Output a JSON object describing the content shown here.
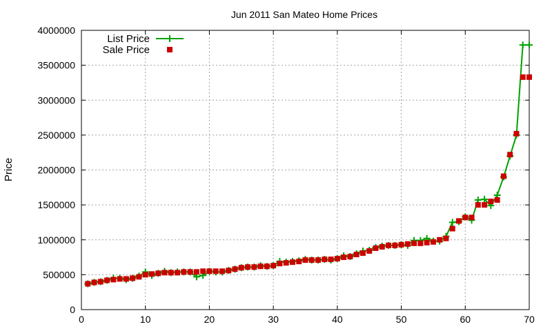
{
  "chart_data": {
    "type": "line",
    "title": "Jun 2011 San Mateo Home Prices",
    "xlabel": "",
    "ylabel": "Price",
    "xlim": [
      0,
      70
    ],
    "ylim": [
      0,
      4000000
    ],
    "x_ticks": [
      0,
      10,
      20,
      30,
      40,
      50,
      60,
      70
    ],
    "y_ticks": [
      0,
      500000,
      1000000,
      1500000,
      2000000,
      2500000,
      3000000,
      3500000,
      4000000
    ],
    "grid": true,
    "legend_position": "top-left",
    "series": [
      {
        "name": "List Price",
        "style": "line-with-plus-markers",
        "color": "#00a000",
        "x": [
          1,
          2,
          3,
          4,
          5,
          6,
          7,
          8,
          9,
          10,
          11,
          12,
          13,
          14,
          15,
          16,
          17,
          18,
          19,
          20,
          21,
          22,
          23,
          24,
          25,
          26,
          27,
          28,
          29,
          30,
          31,
          32,
          33,
          34,
          35,
          36,
          37,
          38,
          39,
          40,
          41,
          42,
          43,
          44,
          45,
          46,
          47,
          48,
          49,
          50,
          51,
          52,
          53,
          54,
          55,
          56,
          57,
          58,
          59,
          60,
          61,
          62,
          63,
          64,
          65,
          66,
          67,
          68,
          69,
          70
        ],
        "values": [
          370000,
          390000,
          400000,
          420000,
          450000,
          450000,
          430000,
          450000,
          480000,
          540000,
          490000,
          520000,
          550000,
          530000,
          540000,
          540000,
          540000,
          470000,
          490000,
          550000,
          540000,
          540000,
          560000,
          580000,
          600000,
          610000,
          610000,
          630000,
          620000,
          630000,
          690000,
          680000,
          690000,
          700000,
          720000,
          710000,
          710000,
          720000,
          710000,
          730000,
          770000,
          760000,
          800000,
          840000,
          850000,
          890000,
          910000,
          920000,
          920000,
          930000,
          920000,
          990000,
          990000,
          1020000,
          980000,
          980000,
          1050000,
          1250000,
          1260000,
          1330000,
          1280000,
          1570000,
          1580000,
          1490000,
          1640000,
          1900000,
          2200000,
          2500000,
          3790000,
          3790000
        ]
      },
      {
        "name": "Sale Price",
        "style": "square-markers",
        "color": "#cc0000",
        "x": [
          1,
          2,
          3,
          4,
          5,
          6,
          7,
          8,
          9,
          10,
          11,
          12,
          13,
          14,
          15,
          16,
          17,
          18,
          19,
          20,
          21,
          22,
          23,
          24,
          25,
          26,
          27,
          28,
          29,
          30,
          31,
          32,
          33,
          34,
          35,
          36,
          37,
          38,
          39,
          40,
          41,
          42,
          43,
          44,
          45,
          46,
          47,
          48,
          49,
          50,
          51,
          52,
          53,
          54,
          55,
          56,
          57,
          58,
          59,
          60,
          61,
          62,
          63,
          64,
          65,
          66,
          67,
          68,
          69,
          70
        ],
        "values": [
          370000,
          390000,
          400000,
          420000,
          430000,
          440000,
          440000,
          450000,
          470000,
          500000,
          510000,
          520000,
          530000,
          530000,
          530000,
          540000,
          540000,
          540000,
          550000,
          550000,
          550000,
          550000,
          560000,
          580000,
          600000,
          610000,
          610000,
          620000,
          620000,
          630000,
          660000,
          670000,
          680000,
          690000,
          710000,
          710000,
          710000,
          720000,
          720000,
          730000,
          750000,
          760000,
          790000,
          810000,
          840000,
          880000,
          900000,
          920000,
          920000,
          930000,
          940000,
          950000,
          950000,
          960000,
          970000,
          1000000,
          1020000,
          1160000,
          1270000,
          1320000,
          1320000,
          1500000,
          1500000,
          1550000,
          1570000,
          1910000,
          2220000,
          2520000,
          3330000,
          3330000
        ]
      }
    ]
  }
}
